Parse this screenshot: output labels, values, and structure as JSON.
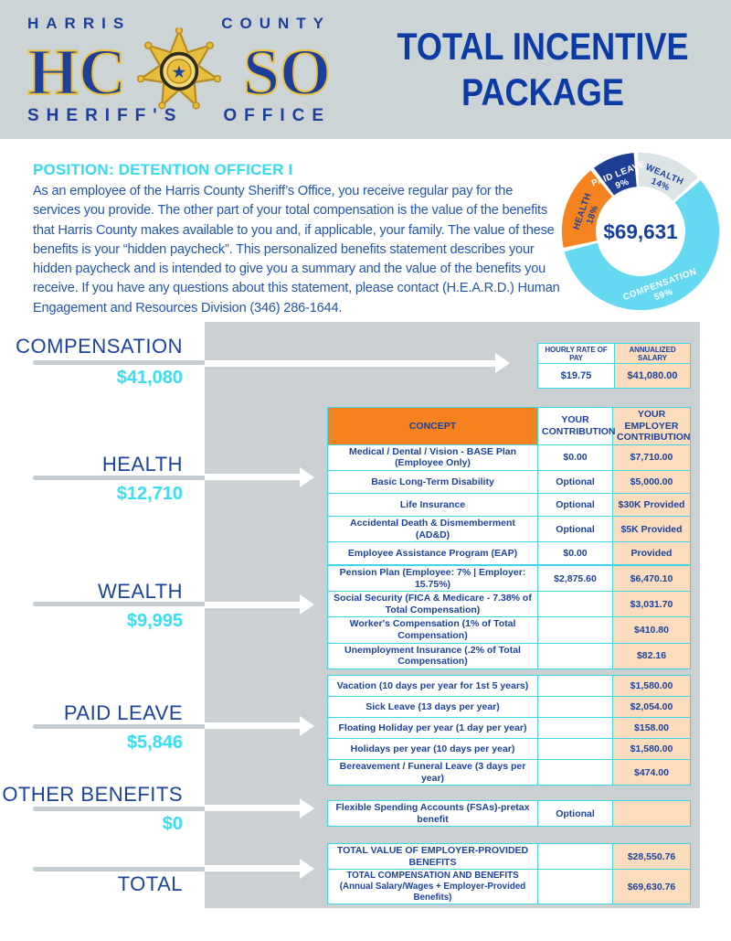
{
  "header": {
    "org_top_left": "HARRIS",
    "org_top_right": "COUNTY",
    "acronym_left": "HC",
    "acronym_right": "SO",
    "org_bottom_left": "SHERIFF'S",
    "org_bottom_right": "OFFICE",
    "title_line1": "TOTAL INCENTIVE",
    "title_line2": "PACKAGE"
  },
  "intro": {
    "position_label": "POSITION: DETENTION OFFICER I",
    "body": "As an employee of the Harris County Sheriff’s Office, you receive regular pay for the services you provide. The other part of your total compensation is the value of the benefits that Harris County makes available to you and, if applicable, your family. The value of these benefits is your “hidden paycheck”. This personalized benefits statement describes your hidden paycheck and is intended to give you a summary and the value of the benefits you receive. If you have any questions about this statement, please contact (H.E.A.R.D.) Human Engagement and Resources Division (346) 286-1644."
  },
  "chart_data": {
    "type": "pie",
    "subtype": "donut",
    "center_label": "$69,631",
    "start_angle": -2,
    "gap_deg": 3,
    "segments": [
      {
        "label": "WEALTH",
        "pct": 14,
        "color": "#dce3e4",
        "text_color": "#1c429f",
        "label_angle": 23
      },
      {
        "label": "COMPENSATION",
        "pct": 59,
        "color": "#66d9f2",
        "text_color": "#ffffff",
        "label_angle": 160
      },
      {
        "label": "HEALTH",
        "pct": 18,
        "color": "#f5831f",
        "text_color": "#1c429f",
        "label_angle": 289
      },
      {
        "label": "PAID LEAVE",
        "pct": 9,
        "color": "#1e3e93",
        "text_color": "#ffffff",
        "label_angle": 339
      }
    ]
  },
  "sections": [
    {
      "label": "COMPENSATION",
      "value": "$41,080"
    },
    {
      "label": "HEALTH",
      "value": "$12,710"
    },
    {
      "label": "WEALTH",
      "value": "$9,995"
    },
    {
      "label": "PAID LEAVE",
      "value": "$5,846"
    },
    {
      "label": "OTHER BENEFITS",
      "value": "$0"
    },
    {
      "label": "TOTAL",
      "value": ""
    }
  ],
  "comp_table": {
    "headers": [
      "HOURLY RATE OF PAY",
      "ANNUALIZED SALARY"
    ],
    "values": [
      "$19.75",
      "$41,080.00"
    ]
  },
  "benefits_table": {
    "headers": [
      "CONCEPT",
      "YOUR CONTRIBUTION",
      "YOUR EMPLOYER CONTRIBUTION"
    ],
    "health_rows": [
      [
        "Medical / Dental / Vision - BASE Plan (Employee Only)",
        "$0.00",
        "$7,710.00"
      ],
      [
        "Basic Long-Term Disability",
        "Optional",
        "$5,000.00"
      ],
      [
        "Life Insurance",
        "Optional",
        "$30K Provided"
      ],
      [
        "Accidental Death & Dismemberment (AD&D)",
        "Optional",
        "$5K Provided"
      ],
      [
        "Employee Assistance Program (EAP)",
        "$0.00",
        "Provided"
      ]
    ],
    "wealth_rows": [
      [
        "Pension Plan (Employee: 7% | Employer: 15.75%)",
        "$2,875.60",
        "$6,470.10"
      ],
      [
        "Social Security (FICA & Medicare - 7.38% of Total Compensation)",
        "",
        "$3,031.70"
      ],
      [
        "Worker's Compensation (1% of Total Compensation)",
        "",
        "$410.80"
      ],
      [
        "Unemployment Insurance (.2% of Total Compensation)",
        "",
        "$82.16"
      ]
    ],
    "paid_leave_rows": [
      [
        "Vacation (10 days per year for 1st 5 years)",
        "",
        "$1,580.00"
      ],
      [
        "Sick Leave (13 days per year)",
        "",
        "$2,054.00"
      ],
      [
        "Floating Holiday per year (1 day per year)",
        "",
        "$158.00"
      ],
      [
        "Holidays per year (10 days per year)",
        "",
        "$1,580.00"
      ],
      [
        "Bereavement / Funeral Leave (3 days per year)",
        "",
        "$474.00"
      ]
    ],
    "other_rows": [
      [
        "Flexible Spending Accounts (FSAs)-pretax benefit",
        "Optional",
        ""
      ]
    ],
    "total_rows": [
      [
        "TOTAL VALUE OF EMPLOYER-PROVIDED BENEFITS",
        "",
        "$28,550.76"
      ],
      [
        "TOTAL COMPENSATION AND BENEFITS\n(Annual Salary/Wages + Employer-Provided Benefits)",
        "",
        "$69,630.76"
      ]
    ]
  },
  "colors": {
    "navy_text": "#1c429f",
    "cyan_text": "#38dff2",
    "orange_header": "#f5821f",
    "peach_cell": "#fbdcbd",
    "cyan_border": "#3ed5e6",
    "panel_gray": "#cbd1d3",
    "band_gray": "#ccd4d6"
  }
}
